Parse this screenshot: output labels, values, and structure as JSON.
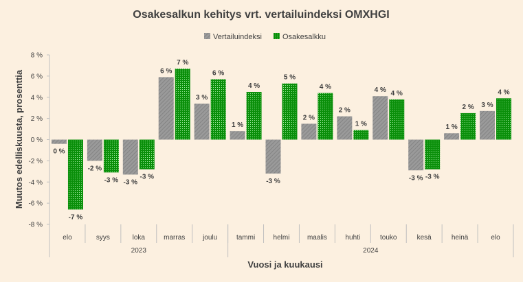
{
  "chart_data": {
    "type": "bar",
    "title": "Osakesalkun kehitys vrt. vertailuindeksi OMXHGI",
    "xlabel": "Vuosi ja kuukausi",
    "ylabel": "Muutos edelliskuusta, prosenttia",
    "ylim": [
      -8,
      8
    ],
    "yticks": [
      8,
      6,
      4,
      2,
      0,
      -2,
      -4,
      -6,
      -8
    ],
    "ytick_labels": [
      "8 %",
      "6 %",
      "4 %",
      "2 %",
      "0 %",
      "-2 %",
      "-4 %",
      "-6 %",
      "-8 %"
    ],
    "categories": [
      "elo",
      "syys",
      "loka",
      "marras",
      "joulu",
      "tammi",
      "helmi",
      "maalis",
      "huhti",
      "touko",
      "kesä",
      "heinä",
      "elo"
    ],
    "year_groups": [
      {
        "label": "2023",
        "count": 5
      },
      {
        "label": "2024",
        "count": 8
      }
    ],
    "legend_position": "top-center",
    "series": [
      {
        "name": "Vertailuindeksi",
        "color": "#969696",
        "pattern": "diagonal-hatch",
        "values": [
          -0.4,
          -2.0,
          -3.3,
          5.9,
          3.4,
          0.8,
          -3.2,
          1.5,
          2.2,
          4.1,
          -2.9,
          0.6,
          2.7
        ],
        "labels": [
          "0 %",
          "-2 %",
          "-3 %",
          "6 %",
          "3 %",
          "1 %",
          "-3 %",
          "2 %",
          "2 %",
          "4 %",
          "-3 %",
          "1 %",
          "3 %"
        ]
      },
      {
        "name": "Osakesalkku",
        "color": "#0a9a0a",
        "pattern": "dots",
        "values": [
          -6.6,
          -3.1,
          -2.8,
          6.7,
          5.7,
          4.5,
          5.3,
          4.4,
          0.9,
          3.8,
          -2.8,
          2.5,
          3.9
        ],
        "labels": [
          "-7 %",
          "-3 %",
          "-3 %",
          "7 %",
          "6 %",
          "4 %",
          "5 %",
          "4 %",
          "1 %",
          "4 %",
          "-3 %",
          "2 %",
          "4 %"
        ]
      }
    ]
  }
}
